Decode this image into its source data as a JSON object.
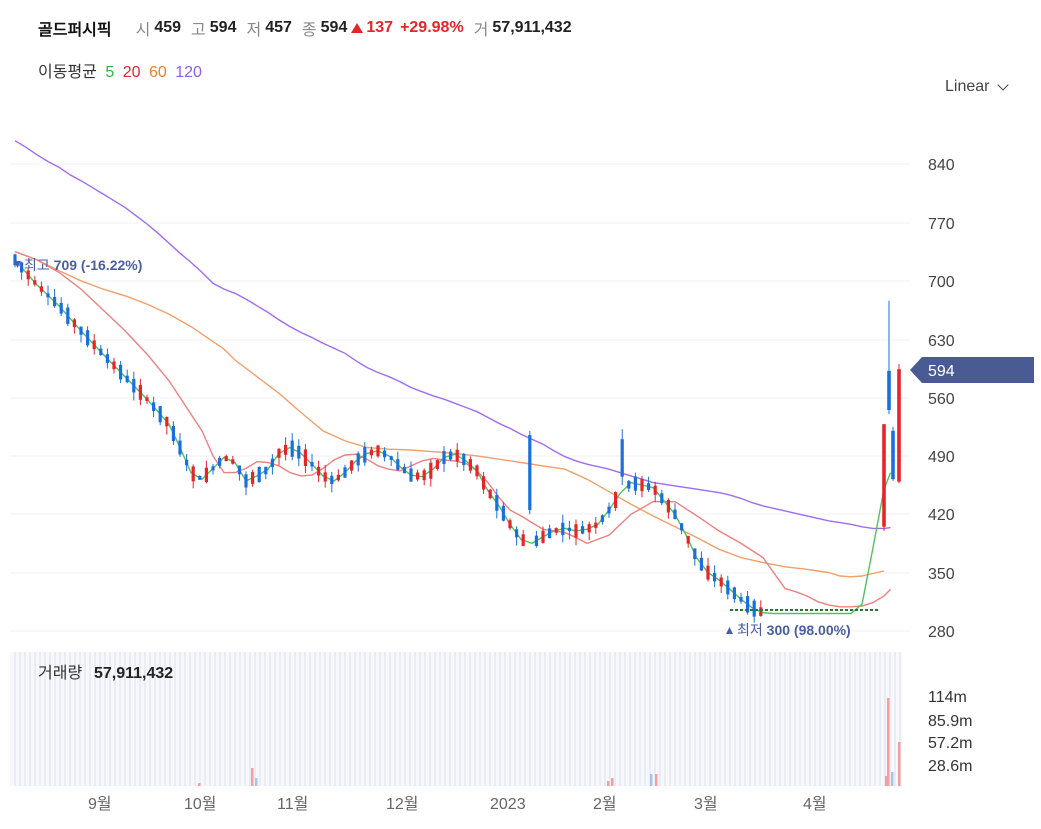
{
  "header": {
    "name": "골드퍼시픽",
    "open_label": "시",
    "open": "459",
    "high_label": "고",
    "high": "594",
    "low_label": "저",
    "low": "457",
    "close_label": "종",
    "close": "594",
    "change": "137",
    "change_pct": "+29.98%",
    "volume_label": "거",
    "volume": "57,911,432"
  },
  "ma_legend": {
    "label": "이동평균",
    "periods": [
      "5",
      "20",
      "60",
      "120"
    ],
    "colors": [
      "#2fb344",
      "#e5252a",
      "#f07e2a",
      "#8b5cf6"
    ]
  },
  "scale_select": {
    "value": "Linear",
    "icon": "chevron-down-icon"
  },
  "volume_panel": {
    "label": "거래량",
    "value": "57,911,432"
  },
  "annotations": {
    "high_label": "최고",
    "high_value": "709 (-16.22%)",
    "low_label": "최저",
    "low_value": "300 (98.00%)"
  },
  "current_price_tag": "594",
  "colors": {
    "up": "#e5252a",
    "down": "#1a6fe0",
    "tag": "#4a5b93"
  },
  "chart_data": {
    "type": "candlestick",
    "y_axis": {
      "ticks": [
        "840",
        "770",
        "700",
        "630",
        "560",
        "490",
        "420",
        "350",
        "280"
      ],
      "range": [
        268,
        868
      ]
    },
    "volume_axis": {
      "ticks": [
        "114m",
        "85.9m",
        "57.2m",
        "28.6m"
      ]
    },
    "x_axis": {
      "ticks": [
        "9월",
        "10월",
        "11월",
        "12월",
        "2023",
        "2월",
        "3월",
        "4월"
      ]
    },
    "high": 709,
    "low": 300,
    "last_close": 594,
    "series_polylines": {
      "ma120": [
        [
          0,
          868
        ],
        [
          5,
          860
        ],
        [
          10,
          851
        ],
        [
          15,
          843
        ],
        [
          20,
          836
        ],
        [
          25,
          827
        ],
        [
          30,
          820
        ],
        [
          35,
          812
        ],
        [
          40,
          804
        ],
        [
          45,
          796
        ],
        [
          50,
          788
        ],
        [
          55,
          778
        ],
        [
          60,
          768
        ],
        [
          65,
          757
        ],
        [
          70,
          745
        ],
        [
          75,
          733
        ],
        [
          80,
          722
        ],
        [
          85,
          710
        ],
        [
          90,
          697
        ],
        [
          95,
          690
        ],
        [
          100,
          685
        ],
        [
          105,
          678
        ],
        [
          110,
          670
        ],
        [
          115,
          662
        ],
        [
          120,
          653
        ],
        [
          125,
          645
        ],
        [
          130,
          638
        ],
        [
          135,
          632
        ],
        [
          140,
          625
        ],
        [
          145,
          619
        ],
        [
          150,
          613
        ],
        [
          155,
          604
        ],
        [
          160,
          596
        ],
        [
          165,
          590
        ],
        [
          170,
          585
        ],
        [
          175,
          579
        ],
        [
          180,
          572
        ],
        [
          185,
          567
        ],
        [
          190,
          562
        ],
        [
          195,
          558
        ],
        [
          200,
          553
        ],
        [
          205,
          548
        ],
        [
          210,
          543
        ],
        [
          215,
          536
        ],
        [
          220,
          529
        ],
        [
          225,
          523
        ],
        [
          230,
          516
        ],
        [
          235,
          510
        ],
        [
          240,
          504
        ],
        [
          245,
          496
        ],
        [
          250,
          489
        ],
        [
          255,
          484
        ],
        [
          260,
          480
        ],
        [
          265,
          477
        ],
        [
          270,
          474
        ],
        [
          275,
          470
        ],
        [
          280,
          466
        ],
        [
          285,
          462
        ],
        [
          290,
          458
        ],
        [
          295,
          456
        ],
        [
          300,
          454
        ],
        [
          305,
          452
        ],
        [
          310,
          450
        ],
        [
          315,
          448
        ],
        [
          320,
          446
        ],
        [
          325,
          443
        ],
        [
          330,
          439
        ],
        [
          335,
          434
        ],
        [
          340,
          430
        ],
        [
          345,
          427
        ],
        [
          350,
          424
        ],
        [
          355,
          421
        ],
        [
          360,
          418
        ],
        [
          365,
          415
        ],
        [
          370,
          412
        ],
        [
          375,
          410
        ],
        [
          380,
          408
        ],
        [
          385,
          405
        ],
        [
          390,
          403
        ],
        [
          395,
          403
        ],
        [
          398,
          404
        ]
      ],
      "ma60": [
        [
          0,
          735
        ],
        [
          10,
          725
        ],
        [
          20,
          712
        ],
        [
          30,
          700
        ],
        [
          40,
          690
        ],
        [
          50,
          682
        ],
        [
          60,
          672
        ],
        [
          70,
          660
        ],
        [
          80,
          645
        ],
        [
          90,
          627
        ],
        [
          95,
          618
        ],
        [
          100,
          605
        ],
        [
          110,
          585
        ],
        [
          120,
          565
        ],
        [
          130,
          542
        ],
        [
          140,
          520
        ],
        [
          150,
          508
        ],
        [
          160,
          500
        ],
        [
          170,
          498
        ],
        [
          180,
          497
        ],
        [
          190,
          495
        ],
        [
          200,
          493
        ],
        [
          210,
          490
        ],
        [
          220,
          486
        ],
        [
          230,
          482
        ],
        [
          240,
          478
        ],
        [
          250,
          474
        ],
        [
          260,
          462
        ],
        [
          270,
          447
        ],
        [
          280,
          432
        ],
        [
          290,
          418
        ],
        [
          300,
          405
        ],
        [
          310,
          392
        ],
        [
          320,
          378
        ],
        [
          330,
          368
        ],
        [
          340,
          362
        ],
        [
          350,
          357
        ],
        [
          360,
          354
        ],
        [
          365,
          352
        ],
        [
          370,
          350
        ],
        [
          375,
          346
        ],
        [
          380,
          345
        ],
        [
          385,
          346
        ],
        [
          390,
          349
        ],
        [
          395,
          352
        ]
      ],
      "ma20": [
        [
          0,
          735
        ],
        [
          10,
          725
        ],
        [
          20,
          710
        ],
        [
          30,
          690
        ],
        [
          40,
          665
        ],
        [
          50,
          640
        ],
        [
          60,
          612
        ],
        [
          70,
          580
        ],
        [
          75,
          560
        ],
        [
          80,
          540
        ],
        [
          85,
          520
        ],
        [
          90,
          490
        ],
        [
          95,
          470
        ],
        [
          100,
          470
        ],
        [
          105,
          475
        ],
        [
          110,
          483
        ],
        [
          115,
          482
        ],
        [
          120,
          478
        ],
        [
          125,
          470
        ],
        [
          130,
          466
        ],
        [
          135,
          467
        ],
        [
          140,
          475
        ],
        [
          145,
          485
        ],
        [
          150,
          491
        ],
        [
          155,
          492
        ],
        [
          160,
          486
        ],
        [
          165,
          478
        ],
        [
          170,
          474
        ],
        [
          175,
          472
        ],
        [
          180,
          478
        ],
        [
          185,
          484
        ],
        [
          190,
          487
        ],
        [
          195,
          485
        ],
        [
          200,
          484
        ],
        [
          205,
          481
        ],
        [
          210,
          472
        ],
        [
          215,
          458
        ],
        [
          220,
          440
        ],
        [
          225,
          425
        ],
        [
          230,
          418
        ],
        [
          235,
          410
        ],
        [
          240,
          402
        ],
        [
          250,
          398
        ],
        [
          255,
          392
        ],
        [
          260,
          385
        ],
        [
          270,
          395
        ],
        [
          280,
          420
        ],
        [
          290,
          435
        ],
        [
          300,
          435
        ],
        [
          310,
          418
        ],
        [
          320,
          400
        ],
        [
          330,
          385
        ],
        [
          340,
          368
        ],
        [
          350,
          331
        ],
        [
          355,
          327
        ],
        [
          360,
          322
        ],
        [
          365,
          315
        ],
        [
          370,
          311
        ],
        [
          375,
          309
        ],
        [
          380,
          309
        ],
        [
          385,
          310
        ],
        [
          390,
          314
        ],
        [
          395,
          322
        ],
        [
          398,
          330
        ]
      ],
      "ma5": [
        [
          0,
          725
        ],
        [
          10,
          695
        ],
        [
          20,
          670
        ],
        [
          30,
          640
        ],
        [
          40,
          612
        ],
        [
          50,
          585
        ],
        [
          60,
          558
        ],
        [
          70,
          528
        ],
        [
          75,
          500
        ],
        [
          80,
          470
        ],
        [
          85,
          462
        ],
        [
          90,
          475
        ],
        [
          95,
          488
        ],
        [
          100,
          482
        ],
        [
          105,
          460
        ],
        [
          110,
          466
        ],
        [
          115,
          474
        ],
        [
          120,
          493
        ],
        [
          125,
          500
        ],
        [
          130,
          493
        ],
        [
          135,
          480
        ],
        [
          140,
          466
        ],
        [
          145,
          460
        ],
        [
          150,
          470
        ],
        [
          155,
          484
        ],
        [
          160,
          493
        ],
        [
          165,
          496
        ],
        [
          170,
          490
        ],
        [
          175,
          477
        ],
        [
          180,
          467
        ],
        [
          185,
          465
        ],
        [
          190,
          474
        ],
        [
          195,
          488
        ],
        [
          200,
          492
        ],
        [
          205,
          484
        ],
        [
          210,
          472
        ],
        [
          215,
          448
        ],
        [
          220,
          430
        ],
        [
          225,
          408
        ],
        [
          230,
          390
        ],
        [
          235,
          385
        ],
        [
          240,
          393
        ],
        [
          245,
          400
        ],
        [
          250,
          403
        ],
        [
          255,
          400
        ],
        [
          260,
          402
        ],
        [
          265,
          408
        ],
        [
          270,
          425
        ],
        [
          275,
          445
        ],
        [
          280,
          458
        ],
        [
          285,
          455
        ],
        [
          290,
          452
        ],
        [
          295,
          436
        ],
        [
          300,
          420
        ],
        [
          305,
          395
        ],
        [
          310,
          367
        ],
        [
          315,
          350
        ],
        [
          320,
          341
        ],
        [
          325,
          330
        ],
        [
          330,
          318
        ],
        [
          335,
          308
        ],
        [
          340,
          302
        ],
        [
          345,
          301
        ],
        [
          350,
          301
        ],
        [
          360,
          301
        ],
        [
          370,
          301
        ],
        [
          380,
          301
        ],
        [
          385,
          312
        ],
        [
          390,
          380
        ],
        [
          395,
          450
        ],
        [
          398,
          470
        ]
      ]
    }
  }
}
